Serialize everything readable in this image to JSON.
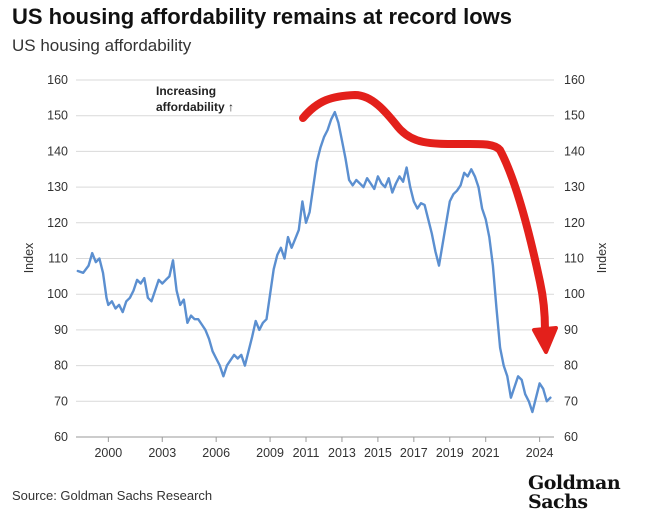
{
  "header": {
    "title": "US housing affordability remains at record lows",
    "subtitle": "US housing affordability"
  },
  "footer": {
    "source": "Source: Goldman Sachs Research",
    "logo_line1": "Goldman",
    "logo_line2": "Sachs"
  },
  "colors": {
    "series_line": "#5b8fd0",
    "arrow": "#e3201b",
    "grid": "#d9d9d9"
  },
  "chart_data": {
    "type": "line",
    "title": "US housing affordability",
    "xlabel": "",
    "ylabel": "Index",
    "ylabel_right": "Index",
    "ylim": [
      60,
      160
    ],
    "yticks": [
      60,
      70,
      80,
      90,
      100,
      110,
      120,
      130,
      140,
      150,
      160
    ],
    "xlim": [
      1998.2,
      2024.8
    ],
    "xticks": [
      "2000",
      "2003",
      "2006",
      "2009",
      "2011",
      "2013",
      "2015",
      "2017",
      "2019",
      "2021",
      "2024"
    ],
    "grid": "horizontal",
    "annotations": [
      {
        "text_line1": "Increasing",
        "text_line2": "affordability ↑"
      }
    ],
    "arrow_annotation": "red trend arrow peaking around 2013 and curving down to about 85 in 2024",
    "series": [
      {
        "values": [
          [
            1998.3,
            106.5
          ],
          [
            1998.6,
            106
          ],
          [
            1998.9,
            108
          ],
          [
            1999.1,
            111.5
          ],
          [
            1999.3,
            109
          ],
          [
            1999.5,
            110
          ],
          [
            1999.7,
            106
          ],
          [
            1999.9,
            99
          ],
          [
            2000.0,
            97
          ],
          [
            2000.2,
            98
          ],
          [
            2000.4,
            96
          ],
          [
            2000.6,
            97
          ],
          [
            2000.8,
            95
          ],
          [
            2001.0,
            98
          ],
          [
            2001.2,
            99
          ],
          [
            2001.4,
            101
          ],
          [
            2001.6,
            104
          ],
          [
            2001.8,
            103
          ],
          [
            2002.0,
            104.5
          ],
          [
            2002.2,
            99
          ],
          [
            2002.4,
            98
          ],
          [
            2002.6,
            101
          ],
          [
            2002.8,
            104
          ],
          [
            2003.0,
            103
          ],
          [
            2003.2,
            104
          ],
          [
            2003.4,
            105
          ],
          [
            2003.6,
            109.5
          ],
          [
            2003.8,
            101
          ],
          [
            2004.0,
            97
          ],
          [
            2004.2,
            98.5
          ],
          [
            2004.4,
            92
          ],
          [
            2004.6,
            94
          ],
          [
            2004.8,
            93
          ],
          [
            2005.0,
            93
          ],
          [
            2005.2,
            91.5
          ],
          [
            2005.4,
            90
          ],
          [
            2005.6,
            87.5
          ],
          [
            2005.8,
            84
          ],
          [
            2006.0,
            82
          ],
          [
            2006.2,
            80
          ],
          [
            2006.4,
            77
          ],
          [
            2006.6,
            80
          ],
          [
            2006.8,
            81.5
          ],
          [
            2007.0,
            83
          ],
          [
            2007.2,
            82
          ],
          [
            2007.4,
            83
          ],
          [
            2007.6,
            80
          ],
          [
            2007.8,
            84
          ],
          [
            2008.0,
            88
          ],
          [
            2008.2,
            92.5
          ],
          [
            2008.4,
            90
          ],
          [
            2008.6,
            92
          ],
          [
            2008.8,
            93
          ],
          [
            2009.0,
            100
          ],
          [
            2009.2,
            107
          ],
          [
            2009.4,
            111
          ],
          [
            2009.6,
            113
          ],
          [
            2009.8,
            110
          ],
          [
            2010.0,
            116
          ],
          [
            2010.2,
            113
          ],
          [
            2010.4,
            115.5
          ],
          [
            2010.6,
            118
          ],
          [
            2010.8,
            126
          ],
          [
            2011.0,
            120
          ],
          [
            2011.2,
            123
          ],
          [
            2011.4,
            130
          ],
          [
            2011.6,
            137
          ],
          [
            2011.8,
            141
          ],
          [
            2012.0,
            144
          ],
          [
            2012.2,
            146
          ],
          [
            2012.4,
            149
          ],
          [
            2012.6,
            151
          ],
          [
            2012.8,
            148
          ],
          [
            2013.0,
            143
          ],
          [
            2013.2,
            138
          ],
          [
            2013.4,
            132
          ],
          [
            2013.6,
            130.5
          ],
          [
            2013.8,
            132
          ],
          [
            2014.0,
            131
          ],
          [
            2014.2,
            130
          ],
          [
            2014.4,
            132.5
          ],
          [
            2014.6,
            131
          ],
          [
            2014.8,
            129.5
          ],
          [
            2015.0,
            133
          ],
          [
            2015.2,
            131
          ],
          [
            2015.4,
            130
          ],
          [
            2015.6,
            132.5
          ],
          [
            2015.8,
            128.5
          ],
          [
            2016.0,
            131
          ],
          [
            2016.2,
            133
          ],
          [
            2016.4,
            131.5
          ],
          [
            2016.6,
            135.5
          ],
          [
            2016.8,
            130
          ],
          [
            2017.0,
            126
          ],
          [
            2017.2,
            124
          ],
          [
            2017.4,
            125.5
          ],
          [
            2017.6,
            125
          ],
          [
            2017.8,
            121
          ],
          [
            2018.0,
            117
          ],
          [
            2018.2,
            112
          ],
          [
            2018.4,
            108
          ],
          [
            2018.6,
            114
          ],
          [
            2018.8,
            120
          ],
          [
            2019.0,
            126
          ],
          [
            2019.2,
            128
          ],
          [
            2019.4,
            129
          ],
          [
            2019.6,
            130.5
          ],
          [
            2019.8,
            134
          ],
          [
            2020.0,
            133
          ],
          [
            2020.2,
            135
          ],
          [
            2020.4,
            133
          ],
          [
            2020.6,
            130
          ],
          [
            2020.8,
            124
          ],
          [
            2021.0,
            121
          ],
          [
            2021.2,
            116
          ],
          [
            2021.4,
            108
          ],
          [
            2021.6,
            96
          ],
          [
            2021.8,
            85
          ],
          [
            2022.0,
            80
          ],
          [
            2022.2,
            77
          ],
          [
            2022.4,
            71
          ],
          [
            2022.6,
            74
          ],
          [
            2022.8,
            77
          ],
          [
            2023.0,
            76
          ],
          [
            2023.2,
            72
          ],
          [
            2023.4,
            70
          ],
          [
            2023.6,
            67
          ],
          [
            2023.8,
            71
          ],
          [
            2024.0,
            75
          ],
          [
            2024.2,
            73.5
          ],
          [
            2024.4,
            70
          ],
          [
            2024.6,
            71
          ]
        ]
      }
    ]
  }
}
